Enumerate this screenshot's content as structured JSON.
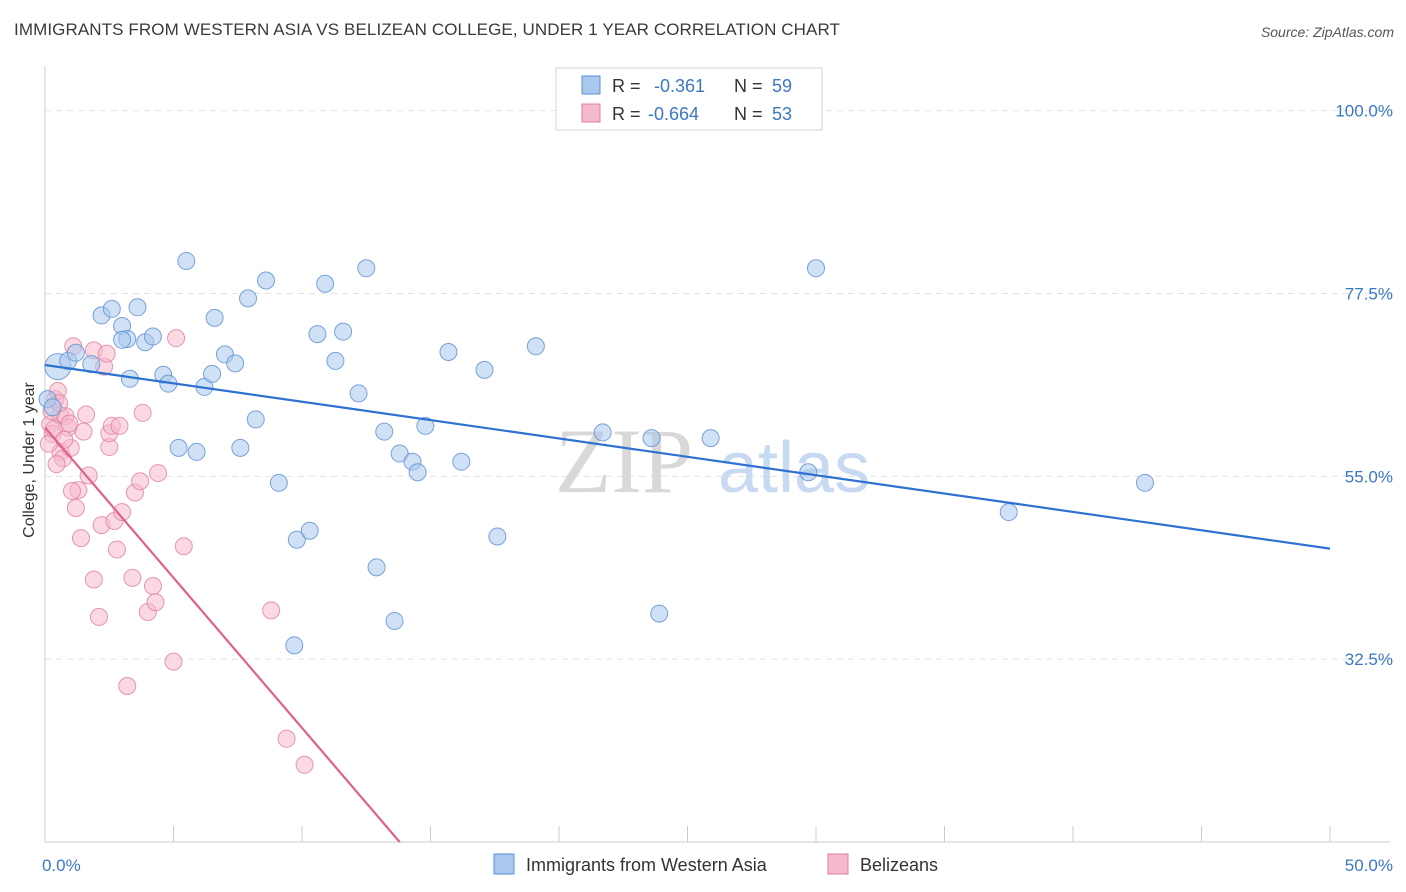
{
  "title": "IMMIGRANTS FROM WESTERN ASIA VS BELIZEAN COLLEGE, UNDER 1 YEAR CORRELATION CHART",
  "source": "Source: ZipAtlas.com",
  "watermark": {
    "zip": "ZIP",
    "atlas": "atlas"
  },
  "colors": {
    "blue_fill": "#aac8ee",
    "blue_stroke": "#5a8fd0",
    "blue_line": "#2d72d2",
    "pink_fill": "#f5b9cc",
    "pink_stroke": "#e07fa0",
    "pink_line": "#e06090",
    "accent_text": "#3b78c4"
  },
  "legend": {
    "r_label": "R =",
    "n_label": "N =",
    "rows": [
      {
        "r": "-0.361",
        "n": "59",
        "color": "blue"
      },
      {
        "r": "-0.664",
        "n": "53",
        "color": "pink"
      }
    ]
  },
  "chart_data": {
    "type": "scatter",
    "xlabel": "",
    "ylabel": "College, Under 1 year",
    "xlim": [
      0,
      50
    ],
    "ylim": [
      10,
      105
    ],
    "x_tick_labels": [
      "0.0%",
      "50.0%"
    ],
    "y_ticks": [
      100.0,
      77.5,
      55.0,
      32.5
    ],
    "y_tick_labels": [
      "100.0%",
      "77.5%",
      "55.0%",
      "32.5%"
    ],
    "grid": true,
    "legend_position": "bottom",
    "series": [
      {
        "name": "Immigrants from Western Asia",
        "color": "blue",
        "trend": {
          "x": [
            0,
            50
          ],
          "y": [
            68.7,
            46.1
          ]
        },
        "points": [
          [
            0.5,
            68.5
          ],
          [
            0.9,
            69.2
          ],
          [
            1.2,
            70.2
          ],
          [
            1.8,
            68.8
          ],
          [
            2.2,
            74.8
          ],
          [
            2.6,
            75.6
          ],
          [
            3.0,
            73.5
          ],
          [
            3.2,
            71.9
          ],
          [
            3.0,
            71.8
          ],
          [
            3.3,
            67.0
          ],
          [
            3.6,
            75.8
          ],
          [
            3.9,
            71.5
          ],
          [
            4.2,
            72.2
          ],
          [
            4.6,
            67.5
          ],
          [
            4.8,
            66.4
          ],
          [
            5.2,
            58.5
          ],
          [
            5.5,
            81.5
          ],
          [
            5.9,
            58.0
          ],
          [
            6.2,
            66.0
          ],
          [
            6.5,
            67.6
          ],
          [
            6.6,
            74.5
          ],
          [
            7.0,
            70.0
          ],
          [
            7.4,
            68.9
          ],
          [
            7.6,
            58.5
          ],
          [
            7.9,
            76.9
          ],
          [
            8.2,
            62.0
          ],
          [
            8.6,
            79.1
          ],
          [
            9.1,
            54.2
          ],
          [
            9.7,
            34.2
          ],
          [
            9.8,
            47.2
          ],
          [
            10.3,
            48.3
          ],
          [
            10.6,
            72.5
          ],
          [
            10.9,
            78.7
          ],
          [
            11.3,
            69.2
          ],
          [
            11.6,
            72.8
          ],
          [
            12.2,
            65.2
          ],
          [
            12.5,
            80.6
          ],
          [
            12.9,
            43.8
          ],
          [
            13.2,
            60.5
          ],
          [
            13.6,
            37.2
          ],
          [
            13.8,
            57.8
          ],
          [
            14.3,
            56.8
          ],
          [
            14.5,
            55.5
          ],
          [
            14.8,
            61.2
          ],
          [
            15.7,
            70.3
          ],
          [
            16.2,
            56.8
          ],
          [
            17.1,
            68.1
          ],
          [
            17.6,
            47.6
          ],
          [
            19.1,
            71.0
          ],
          [
            21.7,
            60.4
          ],
          [
            23.6,
            59.7
          ],
          [
            23.9,
            38.1
          ],
          [
            25.9,
            59.7
          ],
          [
            29.7,
            55.5
          ],
          [
            30.0,
            80.6
          ],
          [
            37.5,
            50.6
          ],
          [
            42.8,
            54.2
          ],
          [
            0.1,
            64.5
          ],
          [
            0.3,
            63.5
          ]
        ]
      },
      {
        "name": "Belizeans",
        "color": "pink",
        "trend": {
          "x": [
            0,
            13.8
          ],
          "y": [
            61.0,
            10.0
          ]
        },
        "points": [
          [
            0.2,
            61.4
          ],
          [
            0.3,
            60.2
          ],
          [
            0.4,
            64.5
          ],
          [
            0.5,
            65.5
          ],
          [
            0.6,
            62.5
          ],
          [
            0.6,
            58.0
          ],
          [
            0.7,
            57.2
          ],
          [
            0.8,
            62.4
          ],
          [
            0.9,
            61.0
          ],
          [
            1.0,
            58.5
          ],
          [
            1.1,
            71.0
          ],
          [
            1.2,
            51.1
          ],
          [
            1.3,
            53.3
          ],
          [
            1.4,
            47.4
          ],
          [
            1.5,
            60.5
          ],
          [
            1.6,
            62.6
          ],
          [
            1.7,
            55.1
          ],
          [
            1.9,
            42.3
          ],
          [
            1.9,
            70.5
          ],
          [
            2.1,
            37.7
          ],
          [
            2.2,
            49.0
          ],
          [
            2.3,
            68.5
          ],
          [
            2.4,
            70.1
          ],
          [
            2.5,
            58.6
          ],
          [
            2.5,
            60.3
          ],
          [
            2.6,
            61.2
          ],
          [
            2.7,
            49.5
          ],
          [
            2.8,
            46.0
          ],
          [
            2.9,
            61.2
          ],
          [
            3.0,
            50.6
          ],
          [
            3.2,
            29.2
          ],
          [
            3.4,
            42.5
          ],
          [
            3.5,
            53.0
          ],
          [
            3.7,
            54.4
          ],
          [
            3.8,
            62.8
          ],
          [
            4.0,
            38.3
          ],
          [
            4.2,
            41.5
          ],
          [
            4.3,
            39.5
          ],
          [
            4.4,
            55.4
          ],
          [
            5.0,
            32.2
          ],
          [
            5.1,
            72.0
          ],
          [
            5.4,
            46.4
          ],
          [
            8.8,
            38.5
          ],
          [
            9.4,
            22.7
          ],
          [
            10.1,
            19.5
          ],
          [
            0.15,
            59.0
          ],
          [
            0.25,
            63.0
          ],
          [
            0.35,
            60.8
          ],
          [
            0.45,
            56.5
          ],
          [
            1.05,
            53.2
          ],
          [
            0.55,
            64.0
          ],
          [
            0.75,
            59.5
          ],
          [
            0.95,
            61.5
          ]
        ]
      }
    ]
  },
  "bottom_legend": [
    {
      "label": "Immigrants from Western Asia",
      "color": "blue"
    },
    {
      "label": "Belizeans",
      "color": "pink"
    }
  ]
}
